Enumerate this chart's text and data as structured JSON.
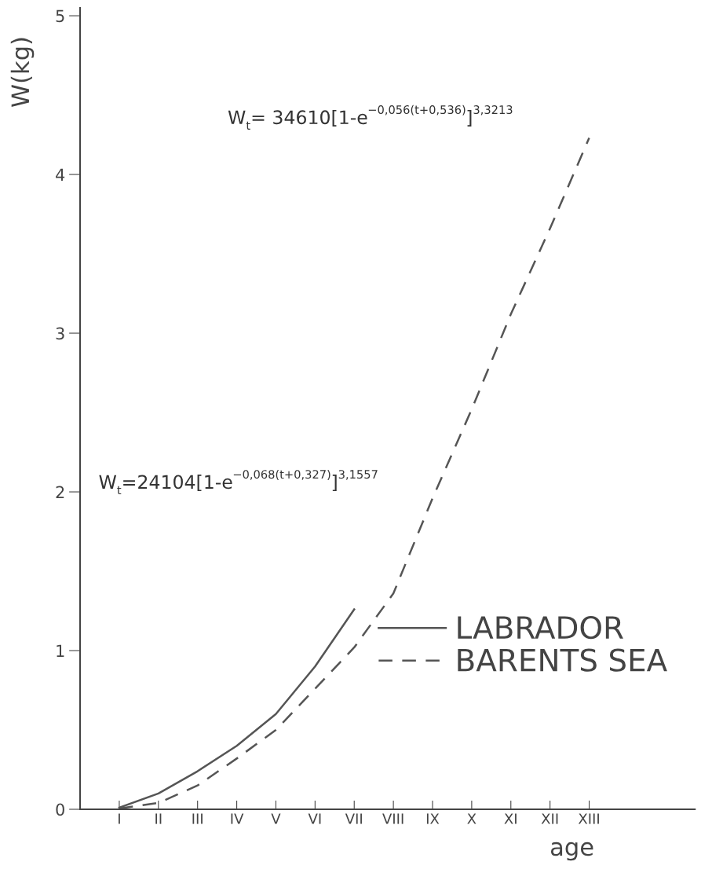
{
  "chart_data": {
    "type": "line",
    "xlabel": "age",
    "ylabel": "W(kg)",
    "categories": [
      "I",
      "II",
      "III",
      "IV",
      "V",
      "VI",
      "VII",
      "VIII",
      "IX",
      "X",
      "XI",
      "XII",
      "XIII"
    ],
    "series": [
      {
        "name": "LABRADOR",
        "color": "#555555",
        "line_style": "solid",
        "values": [
          0.01,
          0.1,
          0.24,
          0.4,
          0.6,
          0.9,
          1.26,
          null,
          null,
          null,
          null,
          null,
          null
        ]
      },
      {
        "name": "BARENTS SEA",
        "color": "#555555",
        "line_style": "dashed",
        "values": [
          0.005,
          0.04,
          0.15,
          0.32,
          0.5,
          0.76,
          1.02,
          1.36,
          1.96,
          2.52,
          3.12,
          3.66,
          4.23
        ]
      }
    ],
    "ylim": [
      0,
      5.05
    ],
    "yticks": [
      0,
      1,
      2,
      3,
      4,
      5
    ],
    "annotations": [
      "W$_{t}$= 34610[1-e$^{−0,056(t+0,536)}$]$^{3,3213}$",
      "W$_{t}$=24104[1-e$^{−0,068(t+0,327)}$]$^{3,1557}$"
    ],
    "grid": false,
    "legend": "lower right"
  }
}
